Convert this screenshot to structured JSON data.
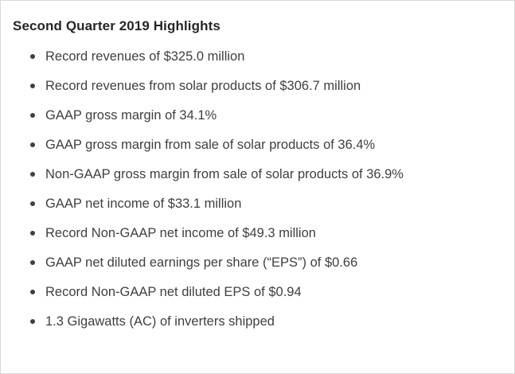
{
  "document": {
    "title": "Second Quarter 2019 Highlights",
    "highlights": [
      "Record revenues of $325.0 million",
      "Record revenues from solar products of $306.7 million",
      "GAAP gross margin of 34.1%",
      "GAAP gross margin from sale of solar products of 36.4%",
      "Non-GAAP gross margin from sale of solar products of 36.9%",
      "GAAP net income of $33.1 million",
      "Record Non-GAAP net income of $49.3 million",
      "GAAP net diluted earnings per share (“EPS”) of $0.66",
      "Record Non-GAAP net diluted EPS of $0.94",
      "1.3 Gigawatts (AC) of inverters shipped"
    ]
  },
  "colors": {
    "text": "#3f3f3f",
    "heading": "#262626",
    "background": "#ffffff",
    "border": "#d9d9d9"
  }
}
